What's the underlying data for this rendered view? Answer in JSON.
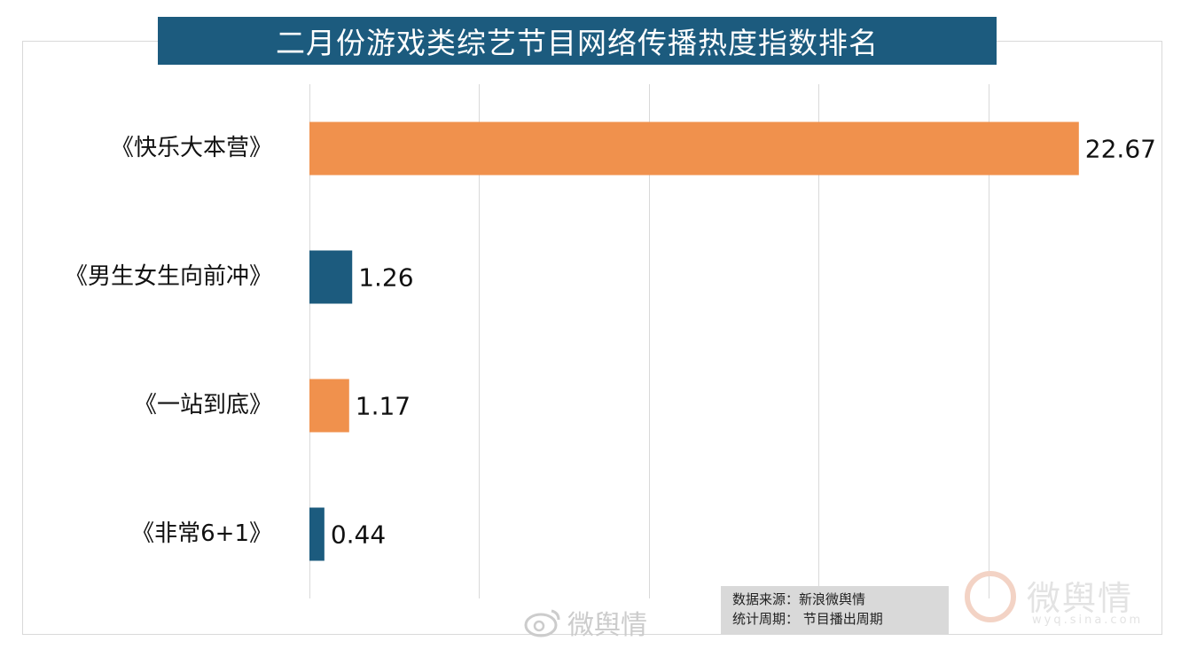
{
  "header": {
    "title": "二月份游戏类综艺节目网络传播热度指数排名"
  },
  "chart_data": {
    "type": "bar",
    "orientation": "horizontal",
    "title": "二月份游戏类综艺节目网络传播热度指数排名",
    "categories": [
      "《快乐大本营》",
      "《男生女生向前冲》",
      "《一站到底》",
      "《非常6+1》"
    ],
    "values": [
      22.67,
      1.26,
      1.17,
      0.44
    ],
    "value_labels": [
      "22.67",
      "1.26",
      "1.17",
      "0.44"
    ],
    "bar_colors": [
      "#f0914d",
      "#1c5b7e",
      "#f0914d",
      "#1c5b7e"
    ],
    "xlim": [
      0,
      25
    ],
    "grid": true,
    "gridlines": [
      0,
      5,
      10,
      15,
      20
    ],
    "xlabel": "",
    "ylabel": ""
  },
  "source": {
    "line1": "数据来源：新浪微舆情",
    "line2": "统计周期：  节目播出周期"
  },
  "watermarks": {
    "center": "微舆情",
    "right": "微舆情",
    "right_sub": "wyq.sina.com"
  },
  "colors": {
    "title_bg": "#1c5b7e",
    "orange": "#f0914d",
    "blue": "#1c5b7e"
  }
}
